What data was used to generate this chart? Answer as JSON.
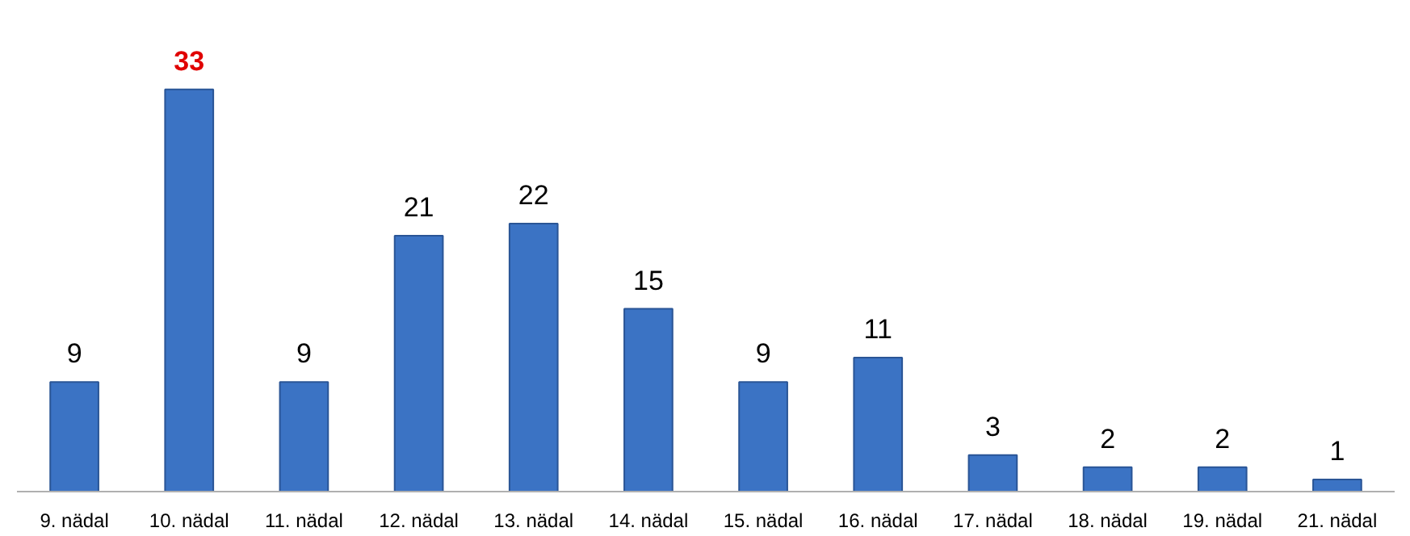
{
  "chart_data": {
    "type": "bar",
    "categories": [
      "9. nädal",
      "10. nädal",
      "11. nädal",
      "12. nädal",
      "13. nädal",
      "14. nädal",
      "15. nädal",
      "16. nädal",
      "17. nädal",
      "18. nädal",
      "19. nädal",
      "21. nädal"
    ],
    "values": [
      9,
      33,
      9,
      21,
      22,
      15,
      9,
      11,
      3,
      2,
      2,
      1
    ],
    "color": "#3b73c4",
    "data_labels": true,
    "tick_labels": "x"
  }
}
